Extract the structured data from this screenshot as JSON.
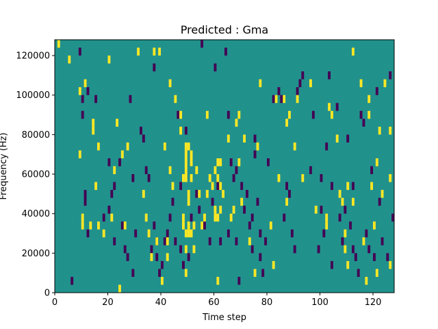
{
  "chart_data": {
    "type": "heatmap",
    "title": "Predicted : Gma",
    "xlabel": "Time step",
    "ylabel": "Frequency (Hz)",
    "xlim": [
      0,
      128
    ],
    "ylim": [
      0,
      128000
    ],
    "xticks": [
      0,
      20,
      40,
      60,
      80,
      100,
      120
    ],
    "yticks": [
      0,
      20000,
      40000,
      60000,
      80000,
      100000,
      120000
    ],
    "grid": false,
    "colors": {
      "background": "#21918c",
      "high": "#fde725",
      "low": "#440154"
    },
    "cell_height_hz": 4000,
    "cell_width_steps": 1,
    "high_cells": [
      [
        1,
        124000
      ],
      [
        5,
        116000
      ],
      [
        9,
        100000
      ],
      [
        9,
        68000
      ],
      [
        10,
        36000
      ],
      [
        10,
        32000
      ],
      [
        11,
        104000
      ],
      [
        13,
        32000
      ],
      [
        14,
        84000
      ],
      [
        14,
        80000
      ],
      [
        15,
        52000
      ],
      [
        16,
        72000
      ],
      [
        16,
        32000
      ],
      [
        18,
        28000
      ],
      [
        20,
        116000
      ],
      [
        21,
        36000
      ],
      [
        22,
        60000
      ],
      [
        23,
        84000
      ],
      [
        24,
        0
      ],
      [
        25,
        68000
      ],
      [
        26,
        32000
      ],
      [
        27,
        72000
      ],
      [
        31,
        120000
      ],
      [
        33,
        48000
      ],
      [
        34,
        36000
      ],
      [
        35,
        28000
      ],
      [
        36,
        16000
      ],
      [
        37,
        120000
      ],
      [
        38,
        24000
      ],
      [
        39,
        120000
      ],
      [
        40,
        4000
      ],
      [
        41,
        72000
      ],
      [
        42,
        24000
      ],
      [
        42,
        16000
      ],
      [
        43,
        104000
      ],
      [
        43,
        60000
      ],
      [
        44,
        52000
      ],
      [
        45,
        96000
      ],
      [
        47,
        88000
      ],
      [
        47,
        80000
      ],
      [
        48,
        56000
      ],
      [
        48,
        36000
      ],
      [
        48,
        32000
      ],
      [
        49,
        72000
      ],
      [
        49,
        68000
      ],
      [
        49,
        64000
      ],
      [
        49,
        60000
      ],
      [
        49,
        56000
      ],
      [
        49,
        28000
      ],
      [
        49,
        20000
      ],
      [
        49,
        8000
      ],
      [
        50,
        72000
      ],
      [
        50,
        48000
      ],
      [
        50,
        44000
      ],
      [
        50,
        32000
      ],
      [
        50,
        28000
      ],
      [
        51,
        68000
      ],
      [
        51,
        64000
      ],
      [
        51,
        56000
      ],
      [
        51,
        28000
      ],
      [
        52,
        32000
      ],
      [
        52,
        20000
      ],
      [
        53,
        60000
      ],
      [
        54,
        48000
      ],
      [
        55,
        32000
      ],
      [
        56,
        36000
      ],
      [
        57,
        88000
      ],
      [
        57,
        48000
      ],
      [
        58,
        56000
      ],
      [
        59,
        52000
      ],
      [
        60,
        60000
      ],
      [
        60,
        40000
      ],
      [
        60,
        36000
      ],
      [
        61,
        64000
      ],
      [
        61,
        56000
      ],
      [
        61,
        36000
      ],
      [
        61,
        4000
      ],
      [
        62,
        64000
      ],
      [
        62,
        52000
      ],
      [
        62,
        40000
      ],
      [
        63,
        48000
      ],
      [
        65,
        76000
      ],
      [
        66,
        36000
      ],
      [
        67,
        40000
      ],
      [
        68,
        84000
      ],
      [
        69,
        88000
      ],
      [
        69,
        64000
      ],
      [
        70,
        44000
      ],
      [
        71,
        76000
      ],
      [
        73,
        24000
      ],
      [
        75,
        8000
      ],
      [
        76,
        72000
      ],
      [
        77,
        104000
      ],
      [
        81,
        32000
      ],
      [
        82,
        12000
      ],
      [
        83,
        96000
      ],
      [
        84,
        56000
      ],
      [
        86,
        96000
      ],
      [
        87,
        84000
      ],
      [
        87,
        44000
      ],
      [
        88,
        88000
      ],
      [
        90,
        72000
      ],
      [
        91,
        96000
      ],
      [
        93,
        56000
      ],
      [
        96,
        104000
      ],
      [
        98,
        40000
      ],
      [
        102,
        36000
      ],
      [
        102,
        32000
      ],
      [
        103,
        92000
      ],
      [
        104,
        88000
      ],
      [
        106,
        76000
      ],
      [
        107,
        48000
      ],
      [
        108,
        44000
      ],
      [
        109,
        28000
      ],
      [
        109,
        20000
      ],
      [
        110,
        52000
      ],
      [
        110,
        12000
      ],
      [
        112,
        120000
      ],
      [
        112,
        44000
      ],
      [
        115,
        104000
      ],
      [
        116,
        24000
      ],
      [
        117,
        4000
      ],
      [
        118,
        96000
      ],
      [
        118,
        88000
      ],
      [
        119,
        52000
      ],
      [
        120,
        32000
      ],
      [
        121,
        64000
      ],
      [
        121,
        8000
      ],
      [
        122,
        80000
      ],
      [
        123,
        48000
      ],
      [
        124,
        104000
      ],
      [
        126,
        80000
      ],
      [
        126,
        56000
      ],
      [
        126,
        12000
      ]
    ],
    "low_cells": [
      [
        6,
        4000
      ],
      [
        9,
        120000
      ],
      [
        10,
        96000
      ],
      [
        10,
        88000
      ],
      [
        11,
        48000
      ],
      [
        11,
        44000
      ],
      [
        12,
        100000
      ],
      [
        12,
        28000
      ],
      [
        15,
        96000
      ],
      [
        16,
        72000
      ],
      [
        18,
        36000
      ],
      [
        20,
        64000
      ],
      [
        20,
        40000
      ],
      [
        21,
        48000
      ],
      [
        22,
        52000
      ],
      [
        22,
        24000
      ],
      [
        24,
        64000
      ],
      [
        25,
        32000
      ],
      [
        26,
        20000
      ],
      [
        27,
        16000
      ],
      [
        28,
        96000
      ],
      [
        29,
        56000
      ],
      [
        29,
        8000
      ],
      [
        30,
        28000
      ],
      [
        32,
        80000
      ],
      [
        33,
        76000
      ],
      [
        34,
        60000
      ],
      [
        35,
        56000
      ],
      [
        36,
        20000
      ],
      [
        37,
        112000
      ],
      [
        37,
        32000
      ],
      [
        38,
        24000
      ],
      [
        38,
        16000
      ],
      [
        39,
        8000
      ],
      [
        40,
        12000
      ],
      [
        41,
        24000
      ],
      [
        42,
        28000
      ],
      [
        43,
        36000
      ],
      [
        44,
        44000
      ],
      [
        45,
        24000
      ],
      [
        46,
        88000
      ],
      [
        47,
        52000
      ],
      [
        47,
        20000
      ],
      [
        48,
        12000
      ],
      [
        49,
        80000
      ],
      [
        50,
        16000
      ],
      [
        51,
        36000
      ],
      [
        53,
        48000
      ],
      [
        54,
        40000
      ],
      [
        55,
        124000
      ],
      [
        56,
        32000
      ],
      [
        58,
        24000
      ],
      [
        59,
        44000
      ],
      [
        60,
        112000
      ],
      [
        61,
        52000
      ],
      [
        62,
        24000
      ],
      [
        64,
        120000
      ],
      [
        65,
        88000
      ],
      [
        65,
        28000
      ],
      [
        66,
        64000
      ],
      [
        67,
        56000
      ],
      [
        68,
        60000
      ],
      [
        68,
        24000
      ],
      [
        69,
        4000
      ],
      [
        70,
        52000
      ],
      [
        71,
        40000
      ],
      [
        72,
        48000
      ],
      [
        73,
        32000
      ],
      [
        74,
        36000
      ],
      [
        74,
        20000
      ],
      [
        75,
        76000
      ],
      [
        75,
        68000
      ],
      [
        76,
        44000
      ],
      [
        77,
        28000
      ],
      [
        77,
        16000
      ],
      [
        78,
        8000
      ],
      [
        79,
        24000
      ],
      [
        80,
        64000
      ],
      [
        82,
        96000
      ],
      [
        84,
        100000
      ],
      [
        85,
        96000
      ],
      [
        86,
        36000
      ],
      [
        87,
        52000
      ],
      [
        88,
        48000
      ],
      [
        89,
        28000
      ],
      [
        90,
        20000
      ],
      [
        91,
        100000
      ],
      [
        92,
        104000
      ],
      [
        93,
        108000
      ],
      [
        96,
        60000
      ],
      [
        97,
        88000
      ],
      [
        99,
        20000
      ],
      [
        100,
        56000
      ],
      [
        100,
        40000
      ],
      [
        101,
        28000
      ],
      [
        102,
        72000
      ],
      [
        103,
        108000
      ],
      [
        104,
        52000
      ],
      [
        104,
        12000
      ],
      [
        106,
        92000
      ],
      [
        107,
        36000
      ],
      [
        108,
        24000
      ],
      [
        109,
        40000
      ],
      [
        110,
        76000
      ],
      [
        111,
        32000
      ],
      [
        112,
        52000
      ],
      [
        112,
        20000
      ],
      [
        113,
        16000
      ],
      [
        114,
        8000
      ],
      [
        115,
        88000
      ],
      [
        116,
        84000
      ],
      [
        117,
        28000
      ],
      [
        118,
        20000
      ],
      [
        119,
        60000
      ],
      [
        120,
        16000
      ],
      [
        121,
        100000
      ],
      [
        122,
        44000
      ],
      [
        123,
        24000
      ],
      [
        125,
        16000
      ],
      [
        126,
        108000
      ],
      [
        127,
        36000
      ]
    ]
  }
}
